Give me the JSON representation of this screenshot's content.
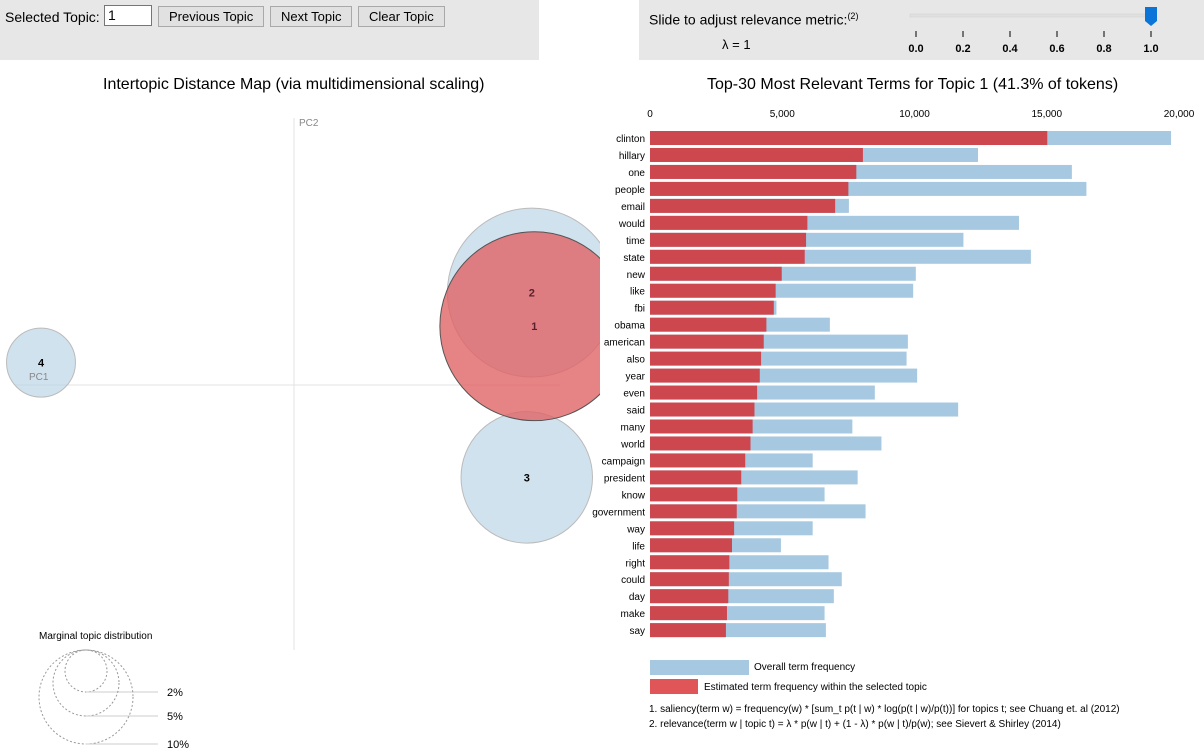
{
  "controls": {
    "selected_topic_label": "Selected Topic:",
    "selected_topic_value": "1",
    "previous_label": "Previous Topic",
    "next_label": "Next Topic",
    "clear_label": "Clear Topic",
    "slider_label": "Slide to adjust relevance metric:",
    "slider_footnote": "(2)",
    "lambda_text": "λ = 1",
    "lambda_value": 1.0,
    "slider_ticks": [
      "0.0",
      "0.2",
      "0.4",
      "0.6",
      "0.8",
      "1.0"
    ]
  },
  "colors": {
    "overall_bar": "#a6c8e0",
    "topic_bar": "#cd474f",
    "selected_circle": "#e06466",
    "unselected_circle": "#b9d3e6",
    "slider_thumb": "#0a74d9",
    "panel_bg": "#e7e7e7"
  },
  "chart_data": [
    {
      "type": "scatter",
      "title": "Intertopic Distance Map (via multidimensional scaling)",
      "xlabel": "PC1",
      "ylabel": "PC2",
      "selected_topic": 1,
      "topics": [
        {
          "id": 1,
          "label": "1",
          "pc1": 0.95,
          "pc2": 0.21,
          "share_pct": 41.3
        },
        {
          "id": 2,
          "label": "2",
          "pc1": 0.94,
          "pc2": 0.33,
          "share_pct": 33
        },
        {
          "id": 3,
          "label": "3",
          "pc1": 0.92,
          "pc2": -0.33,
          "share_pct": 20
        },
        {
          "id": 4,
          "label": "4",
          "pc1": -1.0,
          "pc2": 0.08,
          "share_pct": 5.5
        }
      ],
      "legend": {
        "title": "Marginal topic distribution",
        "entries": [
          {
            "label": "2%",
            "value": 2
          },
          {
            "label": "5%",
            "value": 5
          },
          {
            "label": "10%",
            "value": 10
          }
        ]
      }
    },
    {
      "type": "bar",
      "orientation": "horizontal",
      "title": "Top-30 Most Relevant Terms for Topic 1 (41.3% of tokens)",
      "xlim": [
        0,
        20000
      ],
      "xticks": [
        "0",
        "5,000",
        "10,000",
        "15,000",
        "20,000"
      ],
      "xtick_values": [
        0,
        5000,
        10000,
        15000,
        20000
      ],
      "categories": [
        "clinton",
        "hillary",
        "one",
        "people",
        "email",
        "would",
        "time",
        "state",
        "new",
        "like",
        "fbi",
        "obama",
        "american",
        "also",
        "year",
        "even",
        "said",
        "many",
        "world",
        "campaign",
        "president",
        "know",
        "government",
        "way",
        "life",
        "right",
        "could",
        "day",
        "make",
        "say"
      ],
      "series": [
        {
          "name": "Overall term frequency",
          "values": [
            19700,
            12400,
            15950,
            16500,
            7520,
            13950,
            11850,
            14400,
            10050,
            9950,
            4780,
            6800,
            9750,
            9700,
            10100,
            8500,
            11650,
            7650,
            8750,
            6150,
            7850,
            6600,
            8150,
            6150,
            4950,
            6750,
            7250,
            6950,
            6600,
            6650
          ]
        },
        {
          "name": "Estimated term frequency within the selected topic",
          "values": [
            15020,
            8050,
            7800,
            7500,
            7000,
            5950,
            5900,
            5850,
            4980,
            4750,
            4680,
            4400,
            4300,
            4200,
            4150,
            4050,
            3950,
            3880,
            3800,
            3600,
            3450,
            3300,
            3280,
            3180,
            3100,
            3000,
            2980,
            2960,
            2910,
            2870
          ]
        }
      ],
      "legend": [
        {
          "label": "Overall term frequency",
          "color_key": "overall_bar"
        },
        {
          "label": "Estimated term frequency within the selected topic",
          "color_key": "topic_bar"
        }
      ],
      "footnotes": [
        "1. saliency(term w) = frequency(w) * [sum_t p(t | w) * log(p(t | w)/p(t))] for topics t; see Chuang et. al (2012)",
        "2. relevance(term w | topic t) = λ * p(w | t) + (1 - λ) * p(w | t)/p(w); see Sievert & Shirley (2014)"
      ]
    }
  ]
}
